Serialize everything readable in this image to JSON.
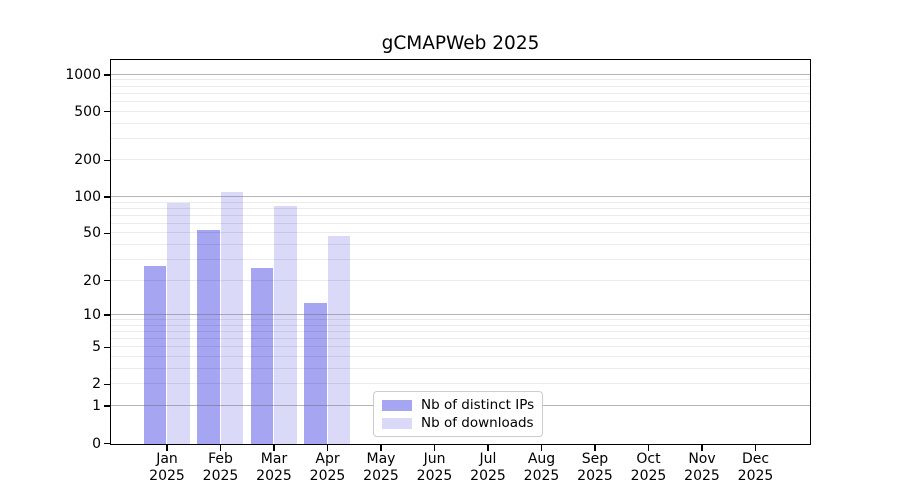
{
  "title": "gCMAPWeb 2025",
  "chart_data": {
    "type": "bar",
    "title": "gCMAPWeb 2025",
    "x_categories": [
      "Jan",
      "Feb",
      "Mar",
      "Apr",
      "May",
      "Jun",
      "Jul",
      "Aug",
      "Sep",
      "Oct",
      "Nov",
      "Dec"
    ],
    "x_year": "2025",
    "series": [
      {
        "name": "Nb of distinct IPs",
        "color": "#a5a5f2",
        "values": [
          27,
          54,
          26,
          13,
          0,
          0,
          0,
          0,
          0,
          0,
          0,
          0
        ]
      },
      {
        "name": "Nb of downloads",
        "color": "#dadaf8",
        "values": [
          90,
          112,
          85,
          48,
          0,
          0,
          0,
          0,
          0,
          0,
          0,
          0
        ]
      }
    ],
    "yaxis": {
      "scale": "log1p",
      "ticks": [
        0,
        1,
        2,
        5,
        10,
        20,
        50,
        100,
        200,
        500,
        1000
      ],
      "major_grid": [
        1,
        10,
        100,
        1000
      ],
      "minor_grid_bases": [
        1,
        10,
        100
      ],
      "range_top": 1300
    },
    "grid": true,
    "legend_position": "bottom-center"
  },
  "colors": {
    "major_grid": "rgba(110,110,110,0.5)",
    "minor_grid": "rgba(0,0,0,0.08)",
    "axis": "#000000",
    "text": "#000000",
    "background": "#ffffff",
    "legend_border": "#cccccc"
  }
}
